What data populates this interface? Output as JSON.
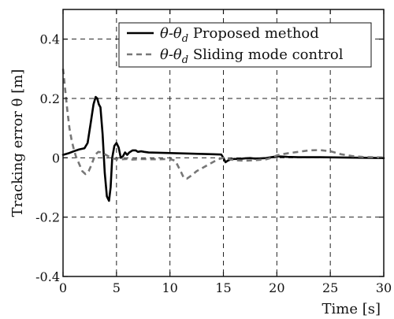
{
  "chart_data": {
    "type": "line",
    "xlabel": "Time [s]",
    "ylabel": "Tracking error θ [m]",
    "xlim": [
      0,
      30
    ],
    "ylim": [
      -0.4,
      0.5
    ],
    "xticks": [
      0,
      5,
      10,
      15,
      20,
      25,
      30
    ],
    "xtick_labels": [
      "0",
      "5",
      "10",
      "15",
      "20",
      "25",
      "30"
    ],
    "yticks": [
      -0.4,
      -0.2,
      0,
      0.2,
      0.4
    ],
    "ytick_labels": [
      "-0.4",
      "-0.2",
      "0",
      "0.2",
      "0.4"
    ],
    "grid": true,
    "legend_position": "top-right",
    "series": [
      {
        "name": "θ-θd Proposed method",
        "legend_math": "θ-θ",
        "legend_sub": "d",
        "legend_rest": " Proposed method",
        "color": "#000000",
        "style": "solid",
        "x": [
          0,
          0.5,
          1.0,
          1.5,
          2.0,
          2.3,
          2.6,
          2.85,
          3.05,
          3.2,
          3.35,
          3.5,
          3.7,
          3.9,
          4.1,
          4.3,
          4.45,
          4.6,
          4.8,
          5.0,
          5.2,
          5.4,
          5.6,
          5.8,
          6.0,
          6.2,
          6.5,
          6.8,
          7.0,
          7.3,
          7.6,
          8.0,
          9.0,
          10.0,
          11.0,
          12.0,
          13.0,
          14.0,
          14.8,
          15.0,
          15.2,
          15.4,
          15.7,
          16.0,
          16.5,
          17.0,
          17.5,
          18.0,
          18.5,
          19.0,
          19.5,
          20.0,
          21.0,
          22.0,
          24.0,
          26.0,
          28.0,
          30.0
        ],
        "y": [
          0.01,
          0.015,
          0.022,
          0.028,
          0.032,
          0.05,
          0.12,
          0.18,
          0.205,
          0.2,
          0.18,
          0.17,
          0.08,
          -0.05,
          -0.13,
          -0.145,
          -0.1,
          0.0,
          0.04,
          0.05,
          0.035,
          0.0,
          0.005,
          0.018,
          0.01,
          0.018,
          0.025,
          0.025,
          0.02,
          0.022,
          0.02,
          0.018,
          0.017,
          0.016,
          0.015,
          0.014,
          0.013,
          0.012,
          0.011,
          0.0,
          -0.015,
          -0.01,
          -0.005,
          -0.004,
          -0.004,
          -0.002,
          -0.001,
          -0.003,
          -0.002,
          -0.001,
          0.002,
          0.005,
          0.003,
          0.002,
          0.002,
          0.001,
          0.0,
          -0.001
        ]
      },
      {
        "name": "θ-θd Sliding mode control",
        "legend_math": "θ-θ",
        "legend_sub": "d",
        "legend_rest": " Sliding mode control",
        "color": "#777777",
        "style": "dashed",
        "x": [
          0,
          0.2,
          0.4,
          0.6,
          0.8,
          1.0,
          1.2,
          1.5,
          1.8,
          2.1,
          2.4,
          2.7,
          3.0,
          3.3,
          3.6,
          4.0,
          4.5,
          5.0,
          5.5,
          6.0,
          6.5,
          7.0,
          7.5,
          8.0,
          9.0,
          10.0,
          10.5,
          11.0,
          11.3,
          11.6,
          12.0,
          12.5,
          13.0,
          13.5,
          14.0,
          14.5,
          15.0,
          15.3,
          15.6,
          16.0,
          17.0,
          18.0,
          19.0,
          19.5,
          20.0,
          20.5,
          21.0,
          22.0,
          23.0,
          24.0,
          25.0,
          26.0,
          27.0,
          28.0,
          29.0,
          30.0
        ],
        "y": [
          0.3,
          0.23,
          0.16,
          0.1,
          0.06,
          0.03,
          0.005,
          -0.02,
          -0.045,
          -0.055,
          -0.045,
          -0.02,
          0.01,
          0.02,
          0.018,
          0.01,
          0.0,
          -0.005,
          -0.005,
          -0.004,
          -0.006,
          -0.005,
          -0.004,
          -0.005,
          -0.005,
          -0.004,
          -0.01,
          -0.045,
          -0.068,
          -0.07,
          -0.06,
          -0.045,
          -0.035,
          -0.025,
          -0.015,
          -0.005,
          0.0,
          0.0,
          -0.005,
          -0.008,
          -0.01,
          -0.008,
          -0.005,
          0.0,
          0.008,
          0.012,
          0.015,
          0.02,
          0.025,
          0.026,
          0.022,
          0.012,
          0.006,
          0.003,
          0.002,
          0.001
        ]
      }
    ]
  }
}
